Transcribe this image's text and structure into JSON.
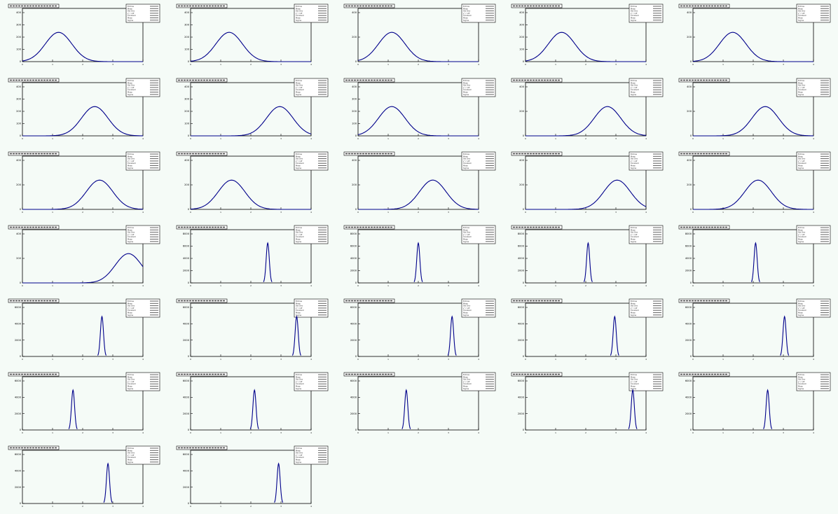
{
  "page": {
    "background": "#f5fbf7"
  },
  "colors": {
    "histogram": "#00e000",
    "fit": "#00008b",
    "frame": "#000000",
    "statbox_fill": "#ffffff",
    "title_fill": "#ffffff"
  },
  "stat_rows": [
    "Entries",
    "Mean",
    "Std Dev",
    "χ² / ndf",
    "Constant",
    "Mean",
    "Sigma"
  ],
  "chart_data": [
    {
      "type": "histogram",
      "shape": "broad",
      "x_range": [
        0,
        1
      ],
      "peak_x": 0.3,
      "y_max": 520,
      "y_ticks": [
        "400",
        "300",
        "200",
        "100",
        "0"
      ],
      "x_ticks": [
        "0",
        "1",
        "2",
        "3",
        "4"
      ]
    },
    {
      "type": "histogram",
      "shape": "broad",
      "x_range": [
        0,
        1
      ],
      "peak_x": 0.32,
      "y_max": 520,
      "y_ticks": [
        "400",
        "300",
        "200",
        "100",
        "0"
      ],
      "x_ticks": [
        "0",
        "1",
        "2",
        "3",
        "4"
      ]
    },
    {
      "type": "histogram",
      "shape": "broad",
      "x_range": [
        0,
        1
      ],
      "peak_x": 0.28,
      "y_max": 600,
      "y_ticks": [
        "400",
        "200",
        "0"
      ],
      "x_ticks": [
        "0",
        "1",
        "2",
        "3",
        "4"
      ]
    },
    {
      "type": "histogram",
      "shape": "broad",
      "x_range": [
        0,
        1
      ],
      "peak_x": 0.3,
      "y_max": 520,
      "y_ticks": [
        "400",
        "300",
        "200",
        "100",
        "0"
      ],
      "x_ticks": [
        "0",
        "1",
        "2",
        "3",
        "4"
      ]
    },
    {
      "type": "histogram",
      "shape": "broad",
      "x_range": [
        0,
        1
      ],
      "peak_x": 0.33,
      "y_max": 480,
      "y_ticks": [
        "400",
        "200",
        "0"
      ],
      "x_ticks": [
        "0",
        "1",
        "2",
        "3",
        "4"
      ]
    },
    {
      "type": "histogram",
      "shape": "broad",
      "x_range": [
        0,
        1
      ],
      "peak_x": 0.6,
      "y_max": 480,
      "y_ticks": [
        "400",
        "300",
        "200",
        "100",
        "0"
      ],
      "x_ticks": [
        "0",
        "1",
        "2",
        "3",
        "4"
      ]
    },
    {
      "type": "histogram",
      "shape": "broad",
      "x_range": [
        0,
        1
      ],
      "peak_x": 0.74,
      "y_max": 480,
      "y_ticks": [
        "400",
        "300",
        "200",
        "100",
        "0"
      ],
      "x_ticks": [
        "0",
        "1",
        "2",
        "3",
        "4"
      ]
    },
    {
      "type": "histogram",
      "shape": "broad",
      "x_range": [
        0,
        1
      ],
      "peak_x": 0.28,
      "y_max": 480,
      "y_ticks": [
        "400",
        "300",
        "200",
        "100",
        "0"
      ],
      "x_ticks": [
        "0",
        "1",
        "2",
        "3",
        "4"
      ]
    },
    {
      "type": "histogram",
      "shape": "broad",
      "x_range": [
        0,
        1
      ],
      "peak_x": 0.68,
      "y_max": 500,
      "y_ticks": [
        "400",
        "200",
        "0"
      ],
      "x_ticks": [
        "0",
        "1",
        "2",
        "3",
        "4"
      ]
    },
    {
      "type": "histogram",
      "shape": "broad",
      "x_range": [
        0,
        1
      ],
      "peak_x": 0.6,
      "y_max": 500,
      "y_ticks": [
        "400",
        "200",
        "0"
      ],
      "x_ticks": [
        "0",
        "1",
        "2",
        "3",
        "4"
      ]
    },
    {
      "type": "histogram",
      "shape": "broad",
      "x_range": [
        0,
        1
      ],
      "peak_x": 0.64,
      "y_max": 560,
      "y_ticks": [
        "400",
        "200",
        "0"
      ],
      "x_ticks": [
        "0",
        "1",
        "2",
        "3",
        "4"
      ]
    },
    {
      "type": "histogram",
      "shape": "broad",
      "x_range": [
        0,
        1
      ],
      "peak_x": 0.34,
      "y_max": 640,
      "y_ticks": [
        "400",
        "200",
        "0"
      ],
      "x_ticks": [
        "0",
        "1",
        "2",
        "3",
        "4"
      ]
    },
    {
      "type": "histogram",
      "shape": "broad",
      "x_range": [
        0,
        1
      ],
      "peak_x": 0.62,
      "y_max": 560,
      "y_ticks": [
        "400",
        "200",
        "0"
      ],
      "x_ticks": [
        "0",
        "1",
        "2",
        "3",
        "4"
      ]
    },
    {
      "type": "histogram",
      "shape": "broad",
      "x_range": [
        0,
        1
      ],
      "peak_x": 0.76,
      "y_max": 560,
      "y_ticks": [
        "400",
        "200",
        "0"
      ],
      "x_ticks": [
        "0",
        "1",
        "2",
        "3",
        "4"
      ]
    },
    {
      "type": "histogram",
      "shape": "broad",
      "x_range": [
        0,
        1
      ],
      "peak_x": 0.54,
      "y_max": 600,
      "y_ticks": [
        "400",
        "200",
        "0"
      ],
      "x_ticks": [
        "0",
        "1",
        "2",
        "3",
        "4"
      ]
    },
    {
      "type": "histogram",
      "shape": "broad",
      "x_range": [
        0,
        1
      ],
      "peak_x": 0.88,
      "y_max": 480,
      "y_ticks": [
        "400",
        "200",
        "0"
      ],
      "x_ticks": [
        "0",
        "1",
        "2",
        "3",
        "4"
      ]
    },
    {
      "type": "histogram",
      "shape": "narrow",
      "x_range": [
        0,
        1
      ],
      "peak_x": 0.64,
      "y_max": 9000,
      "y_ticks": [
        "8000",
        "6000",
        "4000",
        "2000",
        "0"
      ],
      "x_ticks": [
        "0",
        "1",
        "2",
        "3",
        "4"
      ]
    },
    {
      "type": "histogram",
      "shape": "narrow",
      "x_range": [
        0,
        1
      ],
      "peak_x": 0.5,
      "y_max": 9000,
      "y_ticks": [
        "8000",
        "6000",
        "4000",
        "2000",
        "0"
      ],
      "x_ticks": [
        "0",
        "1",
        "2",
        "3",
        "4"
      ]
    },
    {
      "type": "histogram",
      "shape": "narrow",
      "x_range": [
        0,
        1
      ],
      "peak_x": 0.52,
      "y_max": 9000,
      "y_ticks": [
        "8000",
        "6000",
        "4000",
        "2000",
        "0"
      ],
      "x_ticks": [
        "0",
        "1",
        "2",
        "3",
        "4"
      ]
    },
    {
      "type": "histogram",
      "shape": "narrow",
      "x_range": [
        0,
        1
      ],
      "peak_x": 0.52,
      "y_max": 9000,
      "y_ticks": [
        "8000",
        "6000",
        "4000",
        "2000",
        "0"
      ],
      "x_ticks": [
        "0",
        "1",
        "2",
        "3",
        "4"
      ]
    },
    {
      "type": "histogram",
      "shape": "narrow",
      "x_range": [
        0,
        1
      ],
      "peak_x": 0.66,
      "y_max": 9000,
      "y_ticks": [
        "6000",
        "4000",
        "2000",
        "0"
      ],
      "x_ticks": [
        "0",
        "1",
        "2",
        "3",
        "4"
      ]
    },
    {
      "type": "histogram",
      "shape": "narrow",
      "x_range": [
        0,
        1
      ],
      "peak_x": 0.88,
      "y_max": 9000,
      "y_ticks": [
        "6000",
        "4000",
        "2000",
        "0"
      ],
      "x_ticks": [
        "0",
        "1",
        "2",
        "3",
        "4"
      ]
    },
    {
      "type": "histogram",
      "shape": "narrow",
      "x_range": [
        0,
        1
      ],
      "peak_x": 0.78,
      "y_max": 9000,
      "y_ticks": [
        "6000",
        "4000",
        "2000",
        "0"
      ],
      "x_ticks": [
        "0",
        "1",
        "2",
        "3",
        "4"
      ]
    },
    {
      "type": "histogram",
      "shape": "narrow",
      "x_range": [
        0,
        1
      ],
      "peak_x": 0.74,
      "y_max": 9000,
      "y_ticks": [
        "6000",
        "4000",
        "2000",
        "0"
      ],
      "x_ticks": [
        "0",
        "1",
        "2",
        "3",
        "4"
      ]
    },
    {
      "type": "histogram",
      "shape": "narrow",
      "x_range": [
        0,
        1
      ],
      "peak_x": 0.76,
      "y_max": 9000,
      "y_ticks": [
        "6000",
        "4000",
        "2000",
        "0"
      ],
      "x_ticks": [
        "0",
        "1",
        "2",
        "3",
        "4"
      ]
    },
    {
      "type": "histogram",
      "shape": "narrow",
      "x_range": [
        0,
        1
      ],
      "peak_x": 0.42,
      "y_max": 9000,
      "y_ticks": [
        "6000",
        "4000",
        "2000",
        "0"
      ],
      "x_ticks": [
        "0",
        "1",
        "2",
        "3",
        "4"
      ]
    },
    {
      "type": "histogram",
      "shape": "narrow",
      "x_range": [
        0,
        1
      ],
      "peak_x": 0.53,
      "y_max": 9000,
      "y_ticks": [
        "6000",
        "4000",
        "2000",
        "0"
      ],
      "x_ticks": [
        "0",
        "1",
        "2",
        "3",
        "4"
      ]
    },
    {
      "type": "histogram",
      "shape": "narrow",
      "x_range": [
        0,
        1
      ],
      "peak_x": 0.4,
      "y_max": 9000,
      "y_ticks": [
        "6000",
        "4000",
        "2000",
        "0"
      ],
      "x_ticks": [
        "0",
        "1",
        "2",
        "3",
        "4"
      ]
    },
    {
      "type": "histogram",
      "shape": "narrow",
      "x_range": [
        0,
        1
      ],
      "peak_x": 0.89,
      "y_max": 9000,
      "y_ticks": [
        "6000",
        "4000",
        "2000",
        "0"
      ],
      "x_ticks": [
        "0",
        "1",
        "2",
        "3",
        "4"
      ]
    },
    {
      "type": "histogram",
      "shape": "narrow",
      "x_range": [
        0,
        1
      ],
      "peak_x": 0.62,
      "y_max": 9000,
      "y_ticks": [
        "6000",
        "4000",
        "2000",
        "0"
      ],
      "x_ticks": [
        "0",
        "1",
        "2",
        "3",
        "4"
      ]
    },
    {
      "type": "histogram",
      "shape": "narrow",
      "x_range": [
        0,
        1
      ],
      "peak_x": 0.71,
      "y_max": 9000,
      "y_ticks": [
        "6000",
        "4000",
        "2000",
        "0"
      ],
      "x_ticks": [
        "0",
        "1",
        "2",
        "3",
        "4"
      ]
    },
    {
      "type": "histogram",
      "shape": "narrow",
      "x_range": [
        0,
        1
      ],
      "peak_x": 0.73,
      "y_max": 9000,
      "y_ticks": [
        "6000",
        "4000",
        "2000",
        "0"
      ],
      "x_ticks": [
        "0",
        "1",
        "2",
        "3",
        "4"
      ]
    }
  ]
}
